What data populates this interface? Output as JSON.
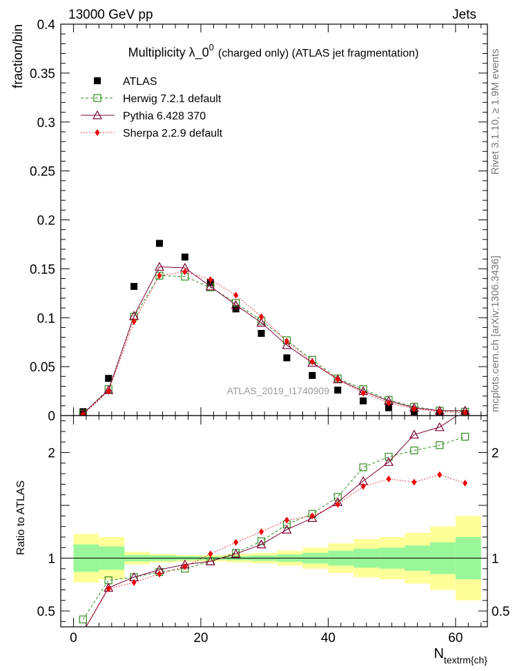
{
  "header": {
    "left": "13000 GeV pp",
    "right": "Jets"
  },
  "side": {
    "rivet": "Rivet 3.1.10, ≥ 1.9M events",
    "mcplots": "mcplots.cern.ch [arXiv:1306.3436]"
  },
  "watermark": "ATLAS_2019_I1740909",
  "colors": {
    "atlas": "#000000",
    "herwig": "#2e8b1e",
    "pythia": "#7a0033",
    "sherpa": "#ee0000",
    "band_inner": "#99f799",
    "band_outer": "#ffff99"
  },
  "chart_data": [
    {
      "type": "scatter",
      "title_main": "Multiplicity  λ_0",
      "title_sup": "0",
      "title_rest": "(charged only) (ATLAS jet fragmentation)",
      "ylabel": "fraction/bin",
      "xlim": [
        -2,
        65
      ],
      "ylim": [
        0,
        0.4
      ],
      "yticks": [
        0,
        0.05,
        0.1,
        0.15,
        0.2,
        0.25,
        0.3,
        0.35,
        0.4
      ],
      "ytick_labels": [
        "0",
        "0.05",
        "0.1",
        "0.15",
        "0.2",
        "0.25",
        "0.3",
        "0.35",
        "0.4"
      ],
      "x": [
        1.5,
        5.5,
        9.5,
        13.5,
        17.5,
        21.5,
        25.5,
        29.5,
        33.5,
        37.5,
        41.5,
        45.5,
        49.5,
        53.5,
        57.5,
        61.5
      ],
      "legend": [
        {
          "key": "atlas",
          "label": "ATLAS"
        },
        {
          "key": "herwig",
          "label": "Herwig 7.2.1 default"
        },
        {
          "key": "pythia",
          "label": "Pythia 6.428 370"
        },
        {
          "key": "sherpa",
          "label": "Sherpa 2.2.9 default"
        }
      ],
      "series": [
        {
          "key": "atlas",
          "name": "ATLAS",
          "values": [
            0.004,
            0.038,
            0.132,
            0.176,
            0.162,
            0.136,
            0.109,
            0.084,
            0.059,
            0.041,
            0.026,
            0.015,
            0.008,
            0.004,
            0.002,
            0.002
          ]
        },
        {
          "key": "herwig",
          "name": "Herwig 7.2.1 default",
          "values": [
            0.002,
            0.027,
            0.101,
            0.143,
            0.142,
            0.131,
            0.115,
            0.097,
            0.077,
            0.057,
            0.038,
            0.027,
            0.016,
            0.009,
            0.005,
            0.004
          ]
        },
        {
          "key": "pythia",
          "name": "Pythia 6.428 370",
          "values": [
            0.002,
            0.026,
            0.102,
            0.152,
            0.151,
            0.132,
            0.113,
            0.095,
            0.072,
            0.054,
            0.037,
            0.025,
            0.015,
            0.008,
            0.005,
            0.005
          ]
        },
        {
          "key": "sherpa",
          "name": "Sherpa 2.2.9 default",
          "values": [
            0.001,
            0.025,
            0.096,
            0.143,
            0.147,
            0.139,
            0.123,
            0.101,
            0.076,
            0.055,
            0.037,
            0.023,
            0.013,
            0.007,
            0.004,
            0.003
          ]
        }
      ]
    },
    {
      "type": "scatter",
      "ylabel": "Ratio to ATLAS",
      "xlabel_main": "N",
      "xlabel_sub": "textrm{ch}",
      "xlim": [
        -2,
        65
      ],
      "ylim": [
        0.35,
        2.35
      ],
      "yticks": [
        0.5,
        1,
        1.5,
        2
      ],
      "ytick_labels": [
        "0.5",
        "1",
        "",
        "2"
      ],
      "xticks": [
        0,
        20,
        40,
        60
      ],
      "xtick_labels": [
        "0",
        "20",
        "40",
        "60"
      ],
      "reference_line": 1,
      "band_edges": [
        0,
        4,
        8,
        12,
        16,
        20,
        24,
        28,
        32,
        36,
        40,
        44,
        48,
        52,
        56,
        60,
        64
      ],
      "band_inner_half": [
        0.13,
        0.11,
        0.03,
        0.025,
        0.02,
        0.015,
        0.02,
        0.025,
        0.035,
        0.05,
        0.07,
        0.09,
        0.1,
        0.12,
        0.15,
        0.2
      ],
      "band_outer_half": [
        0.23,
        0.2,
        0.06,
        0.04,
        0.03,
        0.03,
        0.04,
        0.05,
        0.07,
        0.1,
        0.14,
        0.18,
        0.2,
        0.24,
        0.3,
        0.4
      ],
      "x": [
        1.5,
        5.5,
        9.5,
        13.5,
        17.5,
        21.5,
        25.5,
        29.5,
        33.5,
        37.5,
        41.5,
        45.5,
        49.5,
        53.5,
        57.5,
        61.5
      ],
      "series": [
        {
          "key": "herwig",
          "name": "Herwig 7.2.1 default",
          "values": [
            0.42,
            0.79,
            0.82,
            0.87,
            0.9,
            0.97,
            1.05,
            1.16,
            1.32,
            1.42,
            1.58,
            1.86,
            1.96,
            2.02,
            2.07,
            2.15
          ]
        },
        {
          "key": "pythia",
          "name": "Pythia 6.428 370",
          "values": [
            0.3,
            0.72,
            0.82,
            0.89,
            0.94,
            0.97,
            1.04,
            1.13,
            1.27,
            1.38,
            1.53,
            1.73,
            1.91,
            2.17,
            2.24,
            2.4
          ]
        },
        {
          "key": "sherpa",
          "name": "Sherpa 2.2.9 default",
          "values": [
            0.3,
            0.71,
            0.77,
            0.85,
            0.92,
            1.04,
            1.15,
            1.25,
            1.36,
            1.4,
            1.51,
            1.68,
            1.75,
            1.72,
            1.79,
            1.71
          ]
        }
      ]
    }
  ]
}
